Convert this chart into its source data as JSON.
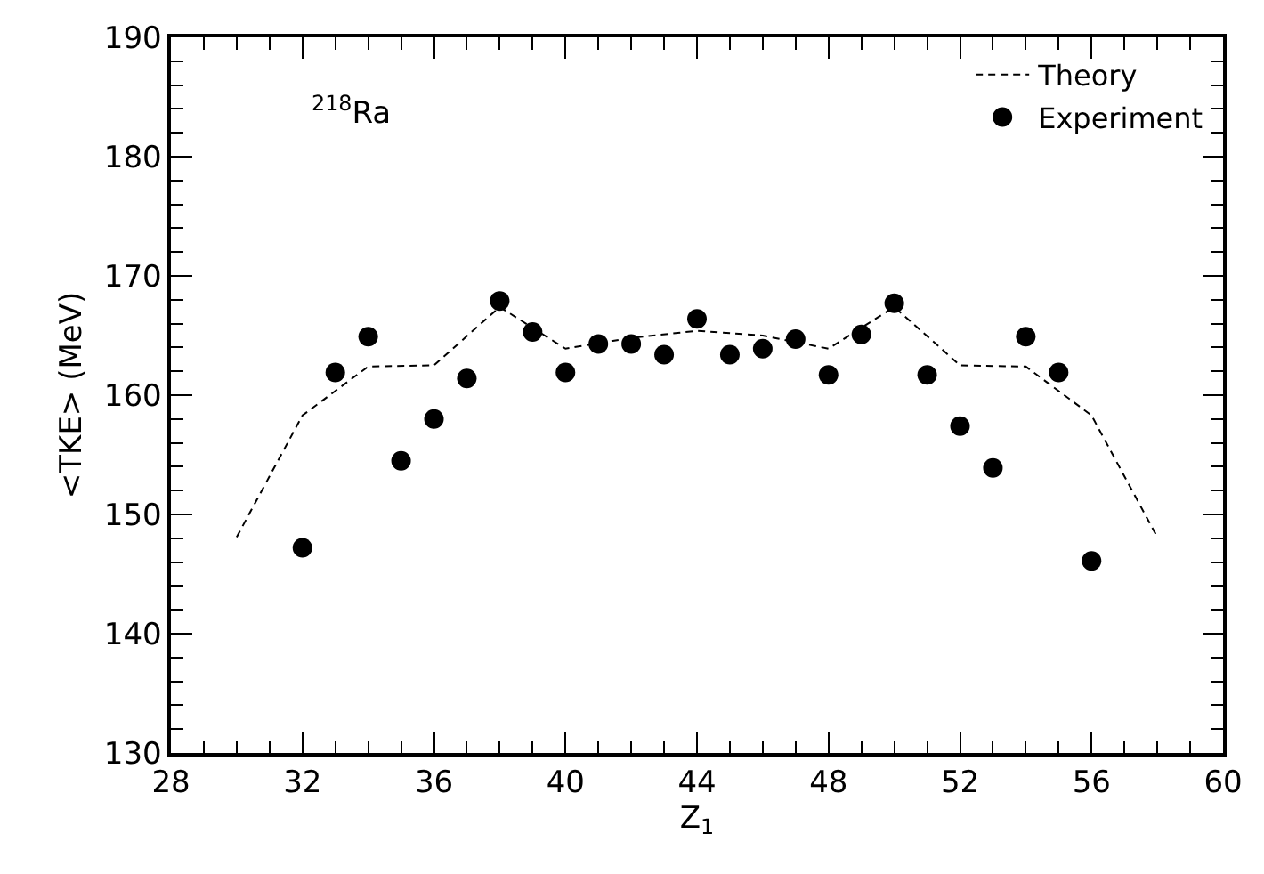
{
  "chart_data": {
    "type": "scatter",
    "xlabel": "Z$_{1}$",
    "ylabel": "<TKE> (MeV)",
    "annotations": [
      "$^{218}$Ra"
    ],
    "series": [
      {
        "name": "Theory",
        "type": "line",
        "color": "#000000",
        "line_style": "dashed",
        "marker": "none",
        "x": [
          30,
          32,
          34,
          36,
          38,
          40,
          42,
          44,
          46,
          48,
          50,
          52,
          54,
          56,
          58
        ],
        "values": [
          148.1,
          158.3,
          162.4,
          162.5,
          167.4,
          163.9,
          164.8,
          165.4,
          165.0,
          163.9,
          167.4,
          162.5,
          162.4,
          158.3,
          148.1
        ]
      },
      {
        "name": "Experiment",
        "color": "#000000",
        "marker": "circle",
        "x": [
          32,
          33,
          34,
          35,
          36,
          37,
          38,
          39,
          40,
          41,
          42,
          43,
          44,
          45,
          46,
          47,
          48,
          49,
          50,
          51,
          52,
          53,
          54,
          55,
          56
        ],
        "values": [
          147.2,
          161.9,
          164.9,
          154.5,
          158.0,
          161.4,
          167.9,
          165.3,
          161.9,
          164.3,
          164.3,
          163.4,
          166.4,
          163.4,
          163.9,
          164.7,
          161.7,
          165.1,
          167.7,
          161.7,
          157.4,
          153.9,
          164.9,
          161.9,
          146.1
        ]
      }
    ],
    "xlim": [
      28,
      60
    ],
    "xticks": [
      28,
      32,
      36,
      40,
      44,
      48,
      52,
      56,
      60
    ],
    "ylim": [
      130,
      190
    ],
    "yticks": [
      130,
      140,
      150,
      160,
      170,
      180,
      190
    ],
    "legend": "top right"
  }
}
